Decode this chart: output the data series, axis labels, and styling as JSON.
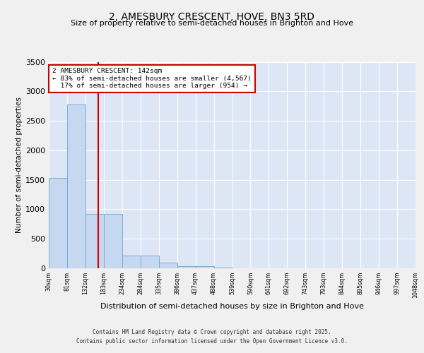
{
  "title": "2, AMESBURY CRESCENT, HOVE, BN3 5RD",
  "subtitle": "Size of property relative to semi-detached houses in Brighton and Hove",
  "xlabel": "Distribution of semi-detached houses by size in Brighton and Hove",
  "ylabel": "Number of semi-detached properties",
  "bar_values": [
    1530,
    2780,
    920,
    920,
    210,
    210,
    90,
    40,
    30,
    10,
    5,
    3,
    2,
    1,
    1,
    0,
    0,
    0,
    0,
    0
  ],
  "categories": [
    "30sqm",
    "81sqm",
    "132sqm",
    "183sqm",
    "234sqm",
    "284sqm",
    "335sqm",
    "386sqm",
    "437sqm",
    "488sqm",
    "539sqm",
    "590sqm",
    "641sqm",
    "692sqm",
    "743sqm",
    "793sqm",
    "844sqm",
    "895sqm",
    "946sqm",
    "997sqm",
    "1048sqm"
  ],
  "bar_color": "#c5d8f0",
  "bar_edge_color": "#7aadd4",
  "property_sqm": 142,
  "property_label": "2 AMESBURY CRESCENT: 142sqm",
  "smaller_pct": 83,
  "smaller_count": 4567,
  "larger_pct": 17,
  "larger_count": 954,
  "annotation_box_color": "#ffffff",
  "annotation_box_edge": "#cc0000",
  "line_color": "#cc0000",
  "ylim": [
    0,
    3500
  ],
  "yticks": [
    0,
    500,
    1000,
    1500,
    2000,
    2500,
    3000,
    3500
  ],
  "bg_color": "#dce6f5",
  "grid_color": "#ffffff",
  "title_fontsize": 10,
  "subtitle_fontsize": 8.5,
  "footer_line1": "Contains HM Land Registry data © Crown copyright and database right 2025.",
  "footer_line2": "Contains public sector information licensed under the Open Government Licence v3.0."
}
